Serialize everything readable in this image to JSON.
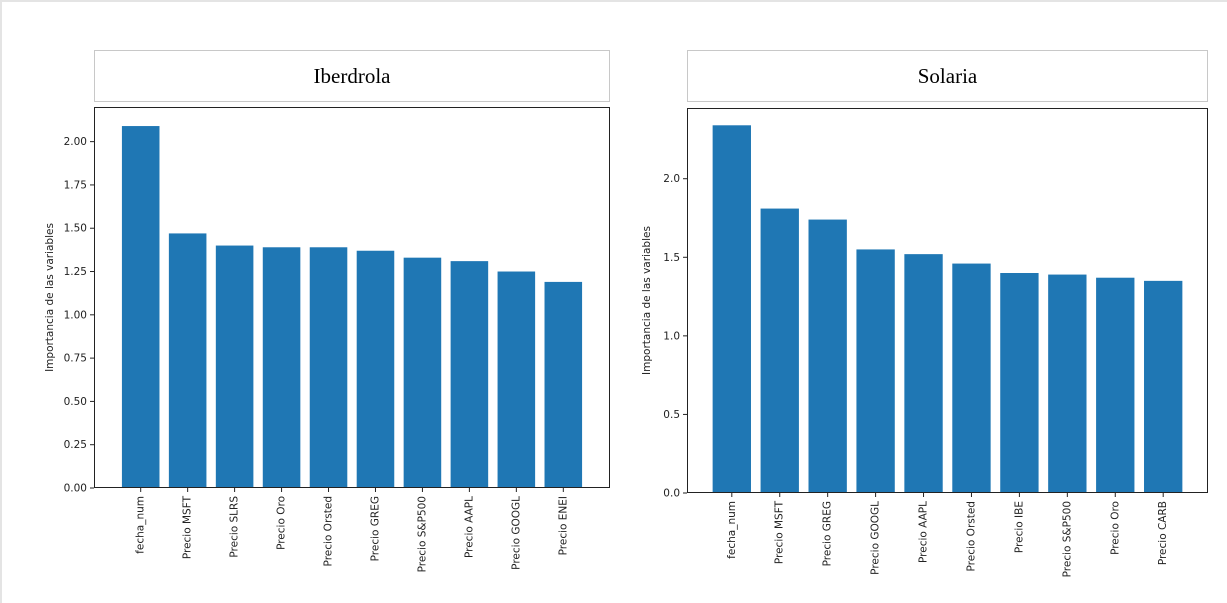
{
  "chart_data": [
    {
      "type": "bar",
      "title": "Iberdrola",
      "xlabel": "",
      "ylabel": "Importancia de las variables",
      "categories": [
        "fecha_num",
        "Precio MSFT",
        "Precio SLRS",
        "Precio Oro",
        "Precio Orsted",
        "Precio GREG",
        "Precio S&P500",
        "Precio AAPL",
        "Precio GOOGL",
        "Precio ENEI"
      ],
      "values": [
        2.09,
        1.47,
        1.4,
        1.39,
        1.39,
        1.37,
        1.33,
        1.31,
        1.25,
        1.19
      ],
      "ylim": [
        0,
        2.2
      ],
      "yticks": [
        "0.00",
        "0.25",
        "0.50",
        "0.75",
        "1.00",
        "1.25",
        "1.50",
        "1.75",
        "2.00"
      ],
      "bar_color": "#1f77b4",
      "grid": false,
      "legend": "none"
    },
    {
      "type": "bar",
      "title": "Solaria",
      "xlabel": "",
      "ylabel": "Importancia de las variables",
      "categories": [
        "fecha_num",
        "Precio MSFT",
        "Precio GREG",
        "Precio GOOGL",
        "Precio AAPL",
        "Precio Orsted",
        "Precio IBE",
        "Precio S&P500",
        "Precio Oro",
        "Precio CARB"
      ],
      "values": [
        2.34,
        1.81,
        1.74,
        1.55,
        1.52,
        1.46,
        1.4,
        1.39,
        1.37,
        1.35
      ],
      "ylim": [
        0,
        2.45
      ],
      "yticks": [
        "0.0",
        "0.5",
        "1.0",
        "1.5",
        "2.0"
      ],
      "bar_color": "#1f77b4",
      "grid": false,
      "legend": "none"
    }
  ]
}
